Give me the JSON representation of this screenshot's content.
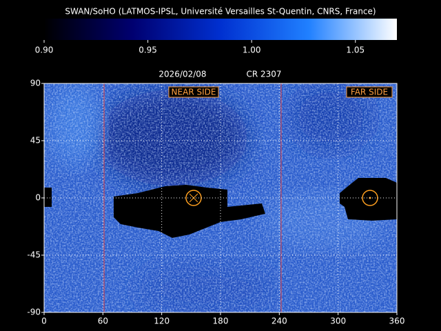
{
  "chart_data": {
    "type": "heatmap",
    "title": "SWAN/SoHO (LATMOS-IPSL, Université Versailles St-Quentin, CNRS, France)",
    "date": "2026/02/08",
    "rotation": "CR 2307",
    "annotations": [
      "NEAR SIDE",
      "FAR SIDE"
    ],
    "colorbar": {
      "clim": [
        0.9,
        1.07
      ],
      "ticks": [
        {
          "value": 0.9,
          "label": "0.90"
        },
        {
          "value": 0.95,
          "label": "0.95"
        },
        {
          "value": 1.0,
          "label": "1.00"
        },
        {
          "value": 1.05,
          "label": "1.05"
        }
      ],
      "colors": [
        "#000000",
        "#000070",
        "#0030d0",
        "#2080ff",
        "#ffffff"
      ]
    },
    "xlim": [
      0,
      360
    ],
    "xticks": [
      0,
      60,
      120,
      180,
      240,
      300,
      360
    ],
    "ylim": [
      -90,
      90
    ],
    "yticks": [
      -90,
      -45,
      0,
      45,
      90
    ],
    "grid": true
  }
}
